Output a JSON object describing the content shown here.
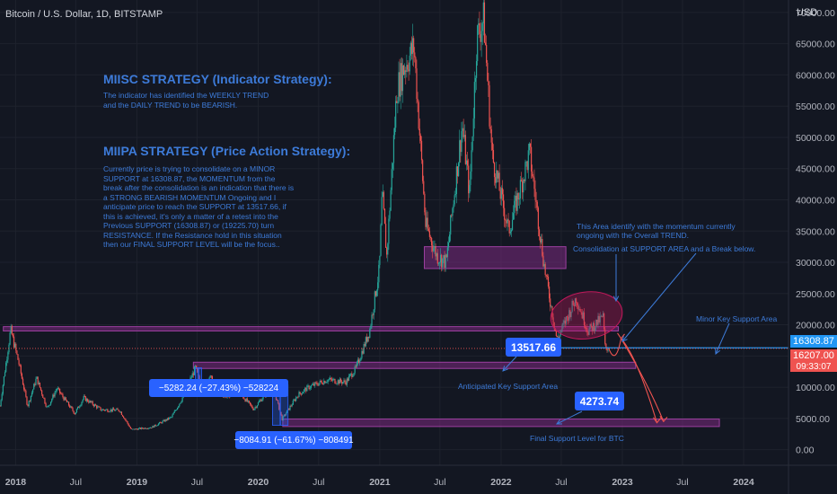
{
  "header": {
    "title": "Bitcoin / U.S. Dollar, 1D, BITSTAMP"
  },
  "axis": {
    "currency": "USD"
  },
  "annotations": {
    "miisc_title": "MIISC STRATEGY (Indicator Strategy):",
    "miisc_body": "The indicator has identified the WEEKLY TREND and the DAILY TREND to be BEARISH.",
    "miipa_title": "MIIPA STRATEGY (Price Action Strategy):",
    "miipa_body": "Currently price is trying to consolidate on a MINOR SUPPORT at 16308.87, the MOMENTUM from the break after the consolidation is an indication that there is a STRONG BEARISH MOMENTUM Ongoing and I anticipate price to reach the SUPPORT at 13517.66, if this is achieved, it's only a matter of a retest into the Previous SUPPORT (16308.87) or (19225.70) turn RESISTANCE. If the Resistance hold in this situation then our FINAL SUPPORT LEVEL will be the focus..",
    "momentum_note": "This Area identify with the momentum currently ongoing with the Overall TREND.",
    "consolidation_note": "Consolidation at SUPPORT AREA and a Break below.",
    "minor_key_support": "Minor Key Support Area",
    "anticipated_support": "Anticipated Key Support Area",
    "final_support": "Final Support Level for BTC",
    "badge_anticipated": "13517.66",
    "badge_final": "4273.74",
    "measure_2019": "−5282.24 (−27.43%) −528224",
    "measure_2020": "−8084.91 (−61.67%) −808491"
  },
  "price_tags": {
    "minor_support": "16308.87",
    "last_price": "16207.00",
    "countdown": "09:33:07"
  },
  "colors": {
    "background": "#131722",
    "up": "#26a69a",
    "down": "#ef5350",
    "annotation": "#3d7bd9",
    "badge": "#2962ff",
    "zone": "#7b2a7f",
    "ellipse": "#c2185b",
    "support_line": "#2196f3",
    "last_price": "#ef5350"
  },
  "chart_data": {
    "type": "candlestick",
    "title": "Bitcoin / U.S. Dollar, 1D, BITSTAMP",
    "y_axis": {
      "unit": "USD",
      "ylim": [
        -2500,
        72000
      ],
      "ticks": [
        0,
        5000,
        10000,
        15000,
        20000,
        25000,
        30000,
        35000,
        40000,
        45000,
        50000,
        55000,
        60000,
        65000,
        70000
      ],
      "tick_labels": [
        "0.00",
        "5000.00",
        "10000.00",
        "15000.00",
        "20000.00",
        "25000.00",
        "30000.00",
        "35000.00",
        "40000.00",
        "45000.00",
        "50000.00",
        "55000.00",
        "60000.00",
        "65000.00",
        "70000.00"
      ]
    },
    "x_axis": {
      "range": [
        "2017-11-15",
        "2024-05-15"
      ],
      "ticks": [
        {
          "date": "2018-01-01",
          "label": "2018",
          "bold": true
        },
        {
          "date": "2018-07-01",
          "label": "Jul",
          "bold": false
        },
        {
          "date": "2019-01-01",
          "label": "2019",
          "bold": true
        },
        {
          "date": "2019-07-01",
          "label": "Jul",
          "bold": false
        },
        {
          "date": "2020-01-01",
          "label": "2020",
          "bold": true
        },
        {
          "date": "2020-07-01",
          "label": "Jul",
          "bold": false
        },
        {
          "date": "2021-01-01",
          "label": "2021",
          "bold": true
        },
        {
          "date": "2021-07-01",
          "label": "Jul",
          "bold": false
        },
        {
          "date": "2022-01-01",
          "label": "2022",
          "bold": true
        },
        {
          "date": "2022-07-01",
          "label": "Jul",
          "bold": false
        },
        {
          "date": "2023-01-01",
          "label": "2023",
          "bold": true
        },
        {
          "date": "2023-07-01",
          "label": "Jul",
          "bold": false
        },
        {
          "date": "2024-01-01",
          "label": "2024",
          "bold": true
        }
      ]
    },
    "price_path": [
      [
        "2017-11-15",
        7000
      ],
      [
        "2017-12-17",
        19200
      ],
      [
        "2018-01-10",
        14000
      ],
      [
        "2018-02-06",
        7000
      ],
      [
        "2018-03-05",
        11500
      ],
      [
        "2018-04-06",
        6600
      ],
      [
        "2018-05-05",
        9800
      ],
      [
        "2018-06-28",
        5800
      ],
      [
        "2018-07-25",
        8300
      ],
      [
        "2018-09-15",
        6400
      ],
      [
        "2018-11-10",
        6300
      ],
      [
        "2018-12-15",
        3200
      ],
      [
        "2019-02-15",
        3600
      ],
      [
        "2019-04-15",
        5200
      ],
      [
        "2019-05-15",
        8000
      ],
      [
        "2019-06-26",
        13100
      ],
      [
        "2019-07-16",
        9500
      ],
      [
        "2019-08-05",
        11800
      ],
      [
        "2019-09-25",
        8300
      ],
      [
        "2019-10-26",
        9800
      ],
      [
        "2019-12-18",
        6500
      ],
      [
        "2020-02-13",
        10400
      ],
      [
        "2020-03-13",
        4900
      ],
      [
        "2020-04-30",
        8800
      ],
      [
        "2020-06-01",
        10000
      ],
      [
        "2020-07-27",
        11200
      ],
      [
        "2020-09-20",
        10800
      ],
      [
        "2020-10-21",
        13000
      ],
      [
        "2020-12-01",
        19000
      ],
      [
        "2020-12-31",
        29000
      ],
      [
        "2021-01-08",
        41000
      ],
      [
        "2021-01-22",
        31000
      ],
      [
        "2021-02-21",
        57500
      ],
      [
        "2021-03-13",
        61000
      ],
      [
        "2021-04-14",
        64500
      ],
      [
        "2021-05-19",
        36000
      ],
      [
        "2021-06-22",
        31000
      ],
      [
        "2021-07-20",
        30000
      ],
      [
        "2021-09-06",
        52000
      ],
      [
        "2021-09-28",
        41000
      ],
      [
        "2021-10-20",
        66000
      ],
      [
        "2021-11-10",
        69000
      ],
      [
        "2021-12-05",
        47000
      ],
      [
        "2022-01-24",
        35000
      ],
      [
        "2022-03-28",
        47500
      ],
      [
        "2022-05-12",
        29000
      ],
      [
        "2022-06-18",
        17600
      ],
      [
        "2022-08-15",
        24300
      ],
      [
        "2022-09-20",
        19000
      ],
      [
        "2022-11-05",
        21300
      ],
      [
        "2022-11-09",
        16500
      ],
      [
        "2022-11-21",
        16207
      ]
    ],
    "candles": {
      "up_color": "#26a69a",
      "down_color": "#ef5350"
    },
    "levels": {
      "minor_key_support": 16308.87,
      "previous_support_turned_resistance": 19225.7,
      "anticipated_key_support": 13517.66,
      "final_support": 4273.74,
      "last_price": 16207.0
    },
    "zones": [
      {
        "from": "2021-05-15",
        "to": "2022-07-15",
        "low": 29000,
        "high": 32500
      },
      {
        "from": "2017-11-25",
        "to": "2022-12-20",
        "low": 19000,
        "high": 19700
      },
      {
        "from": "2019-06-20",
        "to": "2023-02-10",
        "low": 13000,
        "high": 14000
      },
      {
        "from": "2020-03-15",
        "to": "2023-10-20",
        "low": 3700,
        "high": 4900
      }
    ],
    "measures": [
      {
        "from": "2019-06-26",
        "to": "2019-07-04",
        "high": 13100,
        "low": 9500,
        "label": "−5282.24 (−27.43%) −528224"
      },
      {
        "from": "2020-02-13",
        "to": "2020-03-20",
        "high": 10400,
        "low": 3900,
        "label": "−8084.91 (−61.67%) −808491"
      }
    ],
    "projections": [
      {
        "path": [
          [
            "2022-11-21",
            16207
          ],
          [
            "2022-12-12",
            13300
          ],
          [
            "2022-12-28",
            17800
          ]
        ]
      },
      {
        "path": [
          [
            "2022-12-28",
            17800
          ],
          [
            "2023-02-15",
            14800
          ],
          [
            "2023-04-15",
            4300
          ]
        ]
      },
      {
        "path": [
          [
            "2022-12-28",
            17800
          ],
          [
            "2023-03-20",
            10500
          ],
          [
            "2023-05-05",
            4500
          ]
        ]
      }
    ]
  }
}
